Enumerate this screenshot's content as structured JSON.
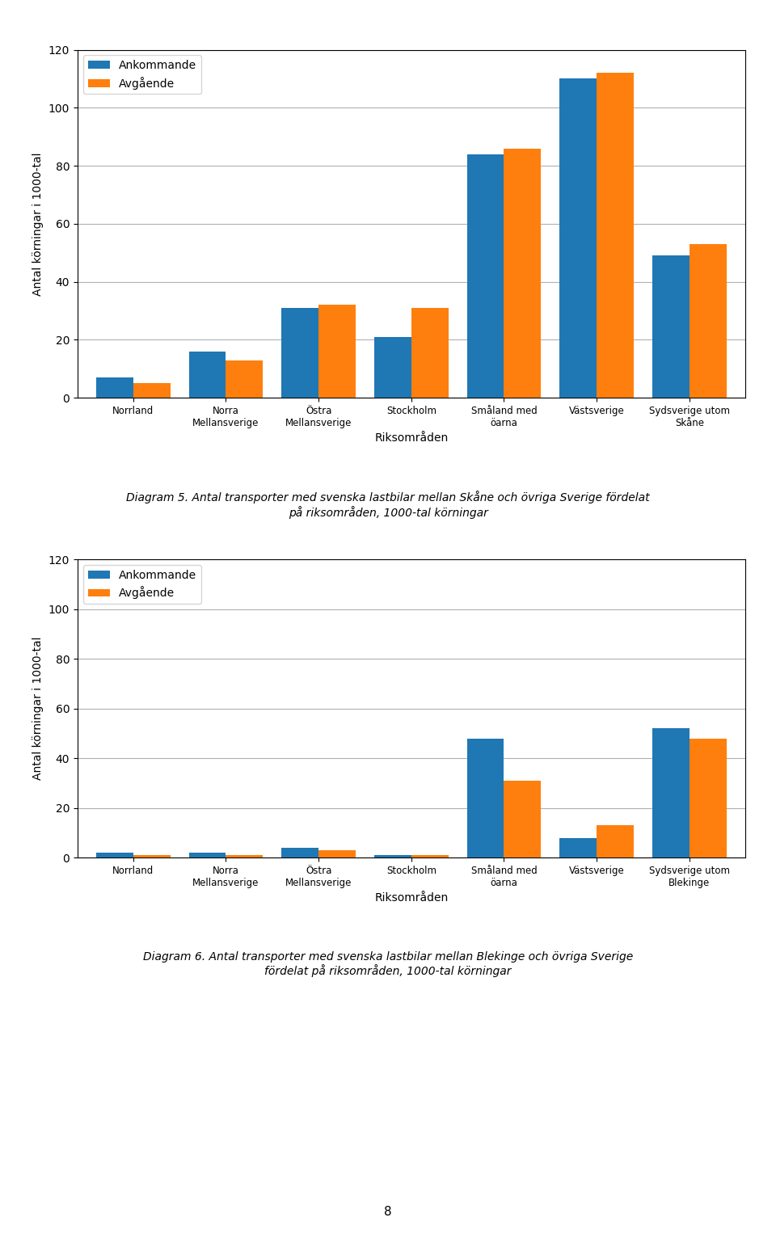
{
  "chart_data": [
    {
      "type": "bar",
      "categories": [
        "Norrland",
        "Norra\nMellansverige",
        "Östra\nMellansverige",
        "Stockholm",
        "Småland med\nöarna",
        "Västsverige",
        "Sydsverige utom\nSkåne"
      ],
      "series": [
        {
          "name": "Ankommande",
          "values": [
            7,
            16,
            31,
            21,
            84,
            110,
            49
          ]
        },
        {
          "name": "Avgående",
          "values": [
            5,
            13,
            32,
            31,
            86,
            112,
            53
          ]
        }
      ],
      "ylim": [
        0,
        120
      ],
      "yticks": [
        0,
        20,
        40,
        60,
        80,
        100,
        120
      ],
      "y_label": "Antal körningar i 1000-tal",
      "x_label": "Riksområden",
      "grid": true,
      "legend": "upper left",
      "annotations": [
        "Diagram 5. Antal transporter med svenska lastbilar mellan Skåne och övriga Sverige fördelat\npå riksområden, 1000-tal körningar"
      ]
    },
    {
      "type": "bar",
      "categories": [
        "Norrland",
        "Norra\nMellansverige",
        "Östra\nMellansverige",
        "Stockholm",
        "Småland med\nöarna",
        "Västsverige",
        "Sydsverige utom\nBlekinge"
      ],
      "series": [
        {
          "name": "Ankommande",
          "values": [
            2,
            2,
            4,
            1,
            48,
            8,
            52
          ]
        },
        {
          "name": "Avgående",
          "values": [
            1,
            1,
            3,
            1,
            31,
            13,
            48
          ]
        }
      ],
      "ylim": [
        0,
        120
      ],
      "yticks": [
        0,
        20,
        40,
        60,
        80,
        100,
        120
      ],
      "y_label": "Antal körningar i 1000-tal",
      "x_label": "Riksområden",
      "grid": true,
      "legend": "upper left",
      "annotations": [
        "Diagram 6. Antal transporter med svenska lastbilar mellan Blekinge och övriga Sverige\nfördelat på riksområden, 1000-tal körningar",
        "8"
      ]
    }
  ]
}
